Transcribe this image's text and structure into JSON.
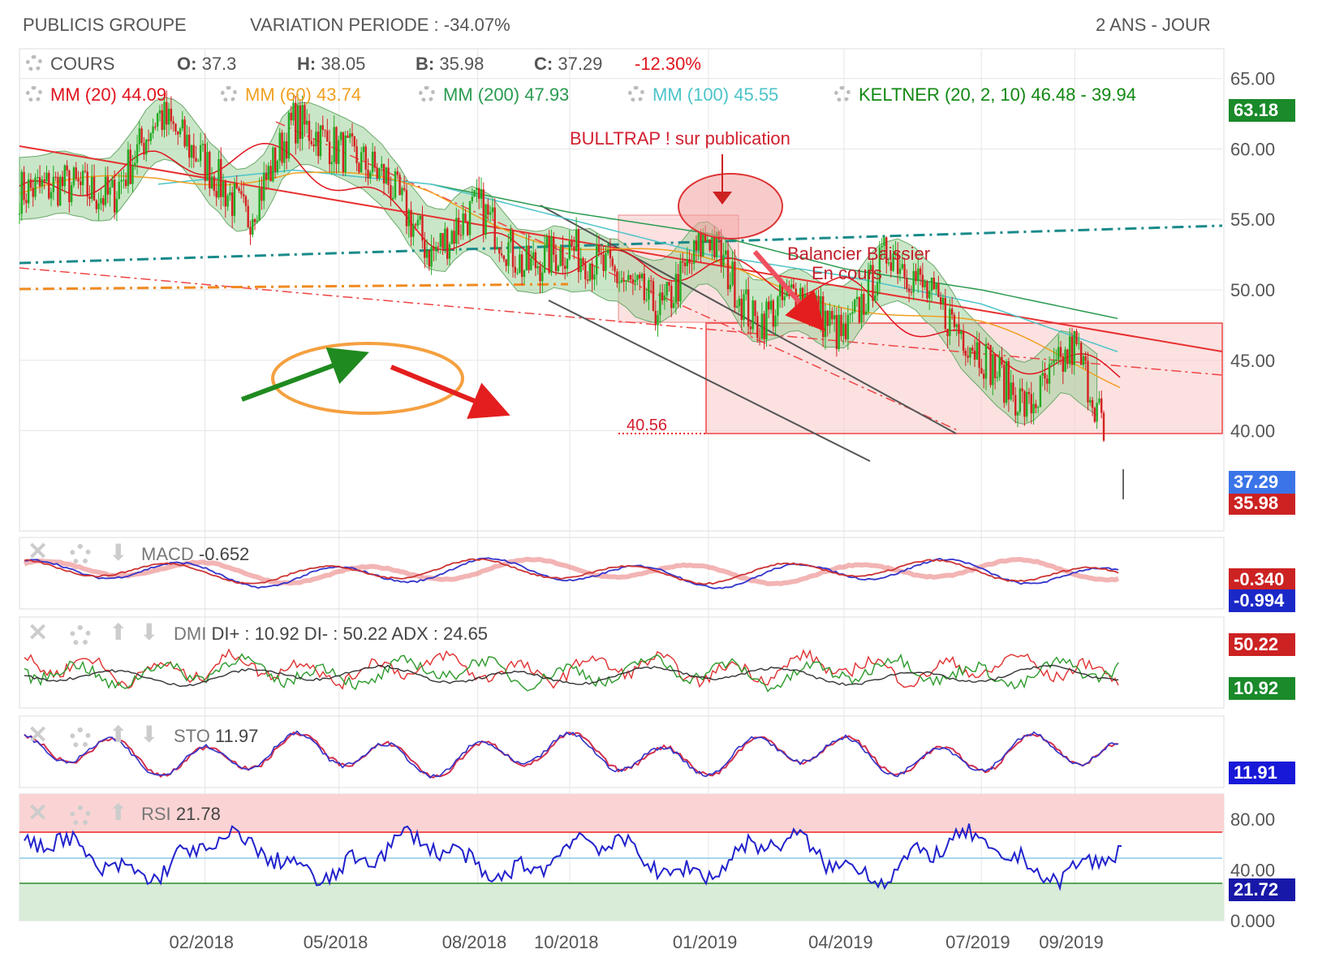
{
  "header": {
    "title": "PUBLICIS GROUPE",
    "variation": "VARIATION PERIODE : -34.07%",
    "period": "2 ANS - JOUR"
  },
  "legend": {
    "cours_label": "COURS",
    "o_label": "O:",
    "o_value": "37.3",
    "h_label": "H:",
    "h_value": "38.05",
    "b_label": "B:",
    "b_value": "35.98",
    "c_label": "C:",
    "c_value": "37.29",
    "change": "-12.30%",
    "mm20": "MM (20) 44.09",
    "mm60": "MM (60) 43.74",
    "mm200": "MM (200) 47.93",
    "mm100": "MM (100) 45.55",
    "keltner": "KELTNER (20, 2, 10) 46.48 - 39.94"
  },
  "annotations": {
    "bulltrap": "BULLTRAP ! sur publication",
    "balancier1": "Balancier Baissier",
    "balancier2": "En cours",
    "level": "40.56"
  },
  "tags": {
    "keltner_top": "63.18",
    "close": "37.29",
    "low": "35.98",
    "macd_1": "-0.340",
    "macd_2": "-0.994",
    "di_minus": "50.22",
    "di_plus": "10.92",
    "sto": "11.91",
    "rsi": "21.72"
  },
  "panels": {
    "macd_label": "MACD",
    "macd_value": "-0.652",
    "dmi_label": "DMI",
    "dmi_value": "DI+ : 10.92 DI- : 50.22 ADX : 24.65",
    "sto_label": "STO",
    "sto_value": "11.97",
    "rsi_label": "RSI",
    "rsi_value": "21.78"
  },
  "colors": {
    "mm20": "#e0141e",
    "mm60": "#f0a020",
    "mm200": "#2a9a50",
    "mm100": "#4cc4c8",
    "keltner": "#118811",
    "bull": "#22aa22",
    "bear": "#d42020",
    "grid": "#e6e6e6"
  },
  "chart_data": {
    "type": "line",
    "main": {
      "title": "PUBLICIS GROUPE",
      "x_ticks": [
        "02/2018",
        "05/2018",
        "08/2018",
        "10/2018",
        "01/2019",
        "04/2019",
        "07/2019",
        "09/2019"
      ],
      "y_ticks": [
        "65.00",
        "60.00",
        "55.00",
        "50.00",
        "45.00",
        "40.00"
      ],
      "ylim": [
        33,
        67
      ],
      "series": [
        {
          "name": "COURS",
          "x": [
            "2017-10",
            "2017-11",
            "2017-12",
            "2018-01",
            "2018-02",
            "2018-03",
            "2018-04",
            "2018-05",
            "2018-06",
            "2018-07",
            "2018-08",
            "2018-09",
            "2018-10",
            "2018-11",
            "2018-12",
            "2019-01",
            "2019-02",
            "2019-03",
            "2019-04",
            "2019-05",
            "2019-06",
            "2019-07",
            "2019-08",
            "2019-09",
            "2019-10"
          ],
          "values": [
            57.0,
            57.5,
            56.5,
            62.5,
            59.0,
            55.0,
            62.0,
            60.0,
            58.0,
            52.5,
            56.0,
            51.5,
            53.0,
            51.0,
            48.5,
            54.0,
            47.5,
            50.0,
            46.5,
            53.0,
            49.0,
            45.5,
            41.5,
            46.0,
            37.3
          ]
        },
        {
          "name": "MM (20)",
          "x": [
            "2017-10",
            "2018-01",
            "2018-04",
            "2018-07",
            "2018-10",
            "2019-01",
            "2019-04",
            "2019-07",
            "2019-10"
          ],
          "values": [
            56.5,
            59.0,
            59.5,
            54.0,
            52.0,
            51.5,
            50.0,
            45.5,
            44.09
          ]
        },
        {
          "name": "MM (60)",
          "x": [
            "2017-10",
            "2018-01",
            "2018-04",
            "2018-07",
            "2018-10",
            "2019-01",
            "2019-04",
            "2019-07",
            "2019-10"
          ],
          "values": [
            56.5,
            58.0,
            58.5,
            56.5,
            53.5,
            51.5,
            49.5,
            47.0,
            43.74
          ]
        },
        {
          "name": "MM (200)",
          "x": [
            "2018-07",
            "2018-10",
            "2019-01",
            "2019-04",
            "2019-07",
            "2019-10"
          ],
          "values": [
            57.5,
            55.5,
            54.0,
            51.5,
            50.0,
            47.93
          ]
        },
        {
          "name": "MM (100)",
          "x": [
            "2018-01",
            "2018-04",
            "2018-07",
            "2018-10",
            "2019-01",
            "2019-04",
            "2019-07",
            "2019-10"
          ],
          "values": [
            57.5,
            58.5,
            57.5,
            55.0,
            52.5,
            51.0,
            49.0,
            45.55
          ]
        }
      ]
    },
    "macd": {
      "label": "MACD",
      "value": -0.652,
      "tags": [
        -0.34,
        -0.994
      ]
    },
    "dmi": {
      "label": "DMI",
      "di_plus": 10.92,
      "di_minus": 50.22,
      "adx": 24.65
    },
    "sto": {
      "label": "STO",
      "value": 11.97,
      "tag": 11.91
    },
    "rsi": {
      "label": "RSI",
      "value": 21.78,
      "tag": 21.72,
      "y_ticks": [
        "80.00",
        "40.00",
        "0.000"
      ],
      "overbought": 70,
      "oversold": 30
    }
  }
}
